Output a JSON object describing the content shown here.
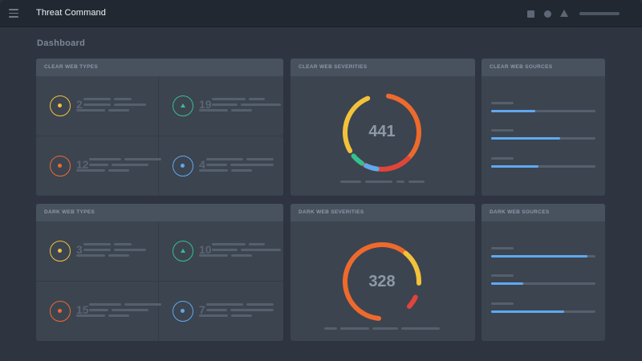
{
  "app": {
    "title": "Threat Command"
  },
  "topbar": {
    "icons": [
      "menu-icon",
      "square-icon",
      "circle-icon",
      "alert-triangle-icon"
    ]
  },
  "page": {
    "title": "Dashboard"
  },
  "colors": {
    "yellow": "#f2c23a",
    "green": "#35c08d",
    "orange": "#ee6a2c",
    "blue": "#5ea9ef",
    "red": "#e0443a"
  },
  "clear_types": {
    "title": "CLEAR WEB TYPES",
    "items": [
      {
        "count": "2",
        "icon": "dot-icon",
        "color": "#f2c23a"
      },
      {
        "count": "19",
        "icon": "triangle-icon",
        "color": "#35c08d"
      },
      {
        "count": "12",
        "icon": "dot-icon",
        "color": "#ee6a2c"
      },
      {
        "count": "4",
        "icon": "dot-icon",
        "color": "#5ea9ef"
      }
    ]
  },
  "clear_severities": {
    "title": "CLEAR WEB SEVERITIES",
    "total": "441"
  },
  "clear_sources": {
    "title": "CLEAR WEB SOURCES",
    "levels": [
      0.42,
      0.66,
      0.45
    ]
  },
  "dark_types": {
    "title": "DARK WEB TYPES",
    "items": [
      {
        "count": "3",
        "icon": "dot-icon",
        "color": "#f2c23a"
      },
      {
        "count": "10",
        "icon": "triangle-icon",
        "color": "#35c08d"
      },
      {
        "count": "15",
        "icon": "dot-icon",
        "color": "#ee6a2c"
      },
      {
        "count": "7",
        "icon": "dot-icon",
        "color": "#5ea9ef"
      }
    ]
  },
  "dark_severities": {
    "title": "DARK WEB SEVERITIES",
    "total": "328"
  },
  "dark_sources": {
    "title": "DARK WEB SOURCES",
    "levels": [
      0.92,
      0.31,
      0.7
    ]
  }
}
